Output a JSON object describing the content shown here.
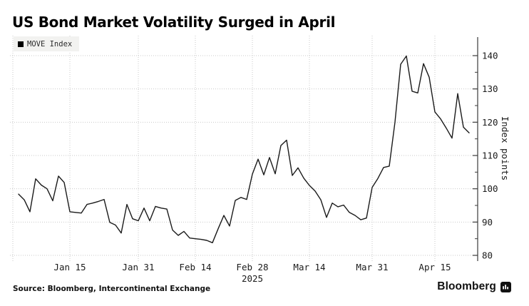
{
  "title": "US Bond Market Volatility Surged in April",
  "legend": {
    "label": "MOVE Index",
    "marker_color": "#000000"
  },
  "source_text": "Source: Bloomberg, Intercontinental Exchange",
  "branding": {
    "logo_text": "Bloomberg",
    "logo_icon": "bloomberg-bars-icon"
  },
  "colors": {
    "background": "#ffffff",
    "line": "#1a1a1a",
    "gridline": "#c9c9c9",
    "axis": "#3a3a3a",
    "legend_bg": "#f2f2f0",
    "text": "#111111"
  },
  "chart_data": {
    "type": "line",
    "title": "US Bond Market Volatility Surged in April",
    "ylabel": "Index points",
    "xlabel": "",
    "ylim": [
      80,
      140
    ],
    "grid": "dotted",
    "legend_position": "top-left",
    "y_ticks": [
      80,
      90,
      100,
      110,
      120,
      130,
      140
    ],
    "y_minor_ticks": [
      85,
      95,
      105,
      115,
      125,
      135
    ],
    "x_ticks": [
      {
        "index": -1,
        "label": "",
        "sublabel": ""
      },
      {
        "index": 9,
        "label": "Jan 15",
        "sublabel": ""
      },
      {
        "index": 21,
        "label": "Jan 31",
        "sublabel": ""
      },
      {
        "index": 31,
        "label": "Feb 14",
        "sublabel": ""
      },
      {
        "index": 41,
        "label": "Feb 28",
        "sublabel": "2025"
      },
      {
        "index": 51,
        "label": "Mar 14",
        "sublabel": ""
      },
      {
        "index": 62,
        "label": "Mar 31",
        "sublabel": ""
      },
      {
        "index": 73,
        "label": "Apr 15",
        "sublabel": ""
      }
    ],
    "series": [
      {
        "name": "MOVE Index",
        "color": "#1a1a1a",
        "x": [
          "Jan 2",
          "Jan 3",
          "Jan 6",
          "Jan 7",
          "Jan 8",
          "Jan 9",
          "Jan 10",
          "Jan 13",
          "Jan 14",
          "Jan 15",
          "Jan 16",
          "Jan 17",
          "Jan 20",
          "Jan 21",
          "Jan 22",
          "Jan 23",
          "Jan 24",
          "Jan 27",
          "Jan 28",
          "Jan 29",
          "Jan 30",
          "Jan 31",
          "Feb 3",
          "Feb 4",
          "Feb 5",
          "Feb 6",
          "Feb 7",
          "Feb 10",
          "Feb 11",
          "Feb 12",
          "Feb 13",
          "Feb 14",
          "Feb 17",
          "Feb 18",
          "Feb 19",
          "Feb 20",
          "Feb 21",
          "Feb 24",
          "Feb 25",
          "Feb 26",
          "Feb 27",
          "Feb 28",
          "Mar 3",
          "Mar 4",
          "Mar 5",
          "Mar 6",
          "Mar 7",
          "Mar 10",
          "Mar 11",
          "Mar 12",
          "Mar 13",
          "Mar 14",
          "Mar 17",
          "Mar 18",
          "Mar 19",
          "Mar 20",
          "Mar 21",
          "Mar 24",
          "Mar 25",
          "Mar 26",
          "Mar 27",
          "Mar 28",
          "Mar 31",
          "Apr 1",
          "Apr 2",
          "Apr 3",
          "Apr 4",
          "Apr 7",
          "Apr 8",
          "Apr 9",
          "Apr 10",
          "Apr 11",
          "Apr 14",
          "Apr 15",
          "Apr 16",
          "Apr 17",
          "Apr 18",
          "Apr 21",
          "Apr 22",
          "Apr 23"
        ],
        "values": [
          98.4,
          96.7,
          93.1,
          103.0,
          101.1,
          100.0,
          96.4,
          103.8,
          101.9,
          93.1,
          92.9,
          92.7,
          95.3,
          95.7,
          96.2,
          96.8,
          89.9,
          89.1,
          86.7,
          95.3,
          91.0,
          90.4,
          94.2,
          90.4,
          94.7,
          94.2,
          93.9,
          87.6,
          86.0,
          87.2,
          85.2,
          85.0,
          84.8,
          84.5,
          83.8,
          88.0,
          92.0,
          88.8,
          96.5,
          97.4,
          96.8,
          104.4,
          108.9,
          104.2,
          109.4,
          104.5,
          113.0,
          114.6,
          104.0,
          106.3,
          103.2,
          101.0,
          99.3,
          96.7,
          91.4,
          95.7,
          94.6,
          95.1,
          92.9,
          92.0,
          90.7,
          91.2,
          100.4,
          103.1,
          106.4,
          106.8,
          120.0,
          137.4,
          139.9,
          129.3,
          128.8,
          137.6,
          133.5,
          123.1,
          121.0,
          118.2,
          115.2,
          128.6,
          118.5,
          116.8
        ]
      }
    ]
  }
}
